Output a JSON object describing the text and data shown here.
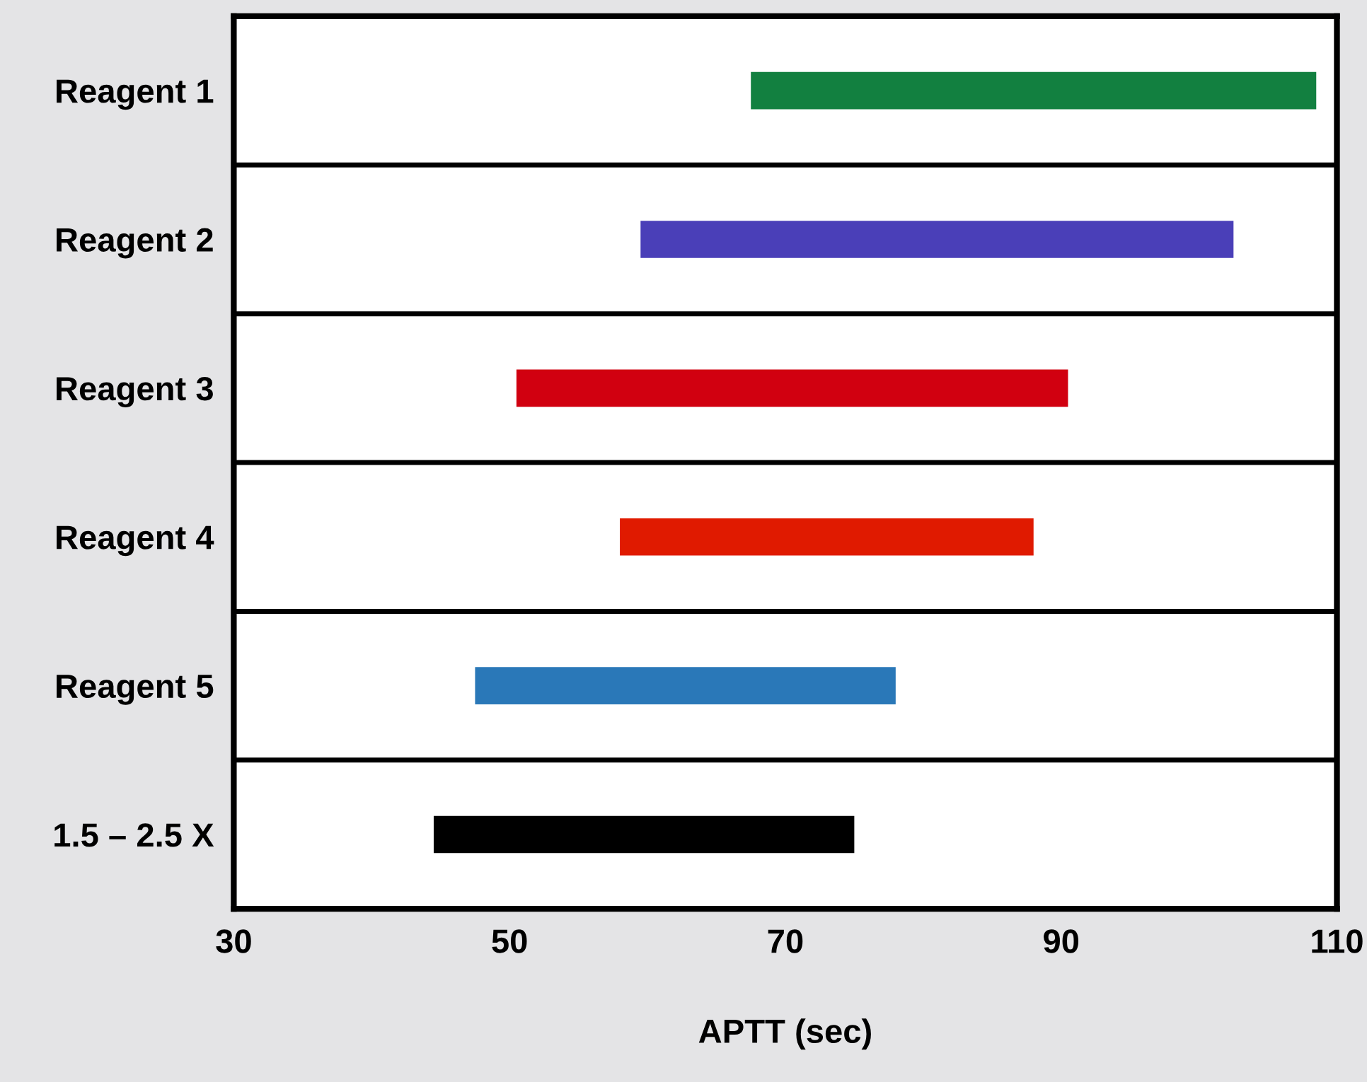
{
  "chart_data": {
    "type": "bar",
    "orientation": "horizontal",
    "xlabel": "APTT (sec)",
    "categories": [
      "Reagent 1",
      "Reagent 2",
      "Reagent 3",
      "Reagent 4",
      "Reagent 5",
      "1.5 – 2.5 X"
    ],
    "base": [
      67.5,
      59.5,
      50.5,
      58,
      47.5,
      44.5
    ],
    "values": [
      41,
      43,
      40,
      30,
      30.5,
      30.5
    ],
    "colors": [
      "#128040",
      "#4a3fb8",
      "#d10010",
      "#e01a00",
      "#2a78b8",
      "#000000"
    ],
    "xlim": [
      30,
      110
    ],
    "xticks": [
      30,
      50,
      70,
      90,
      110
    ],
    "grid": "y"
  }
}
